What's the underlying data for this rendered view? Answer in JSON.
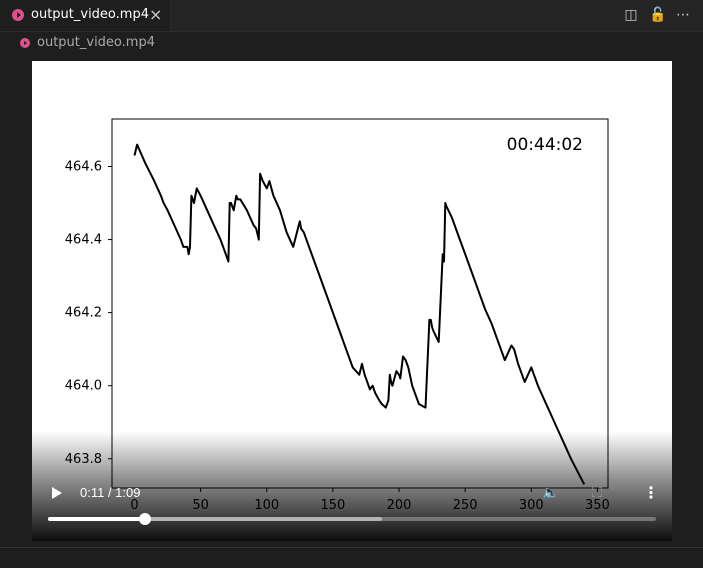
{
  "tab": {
    "label": "output_video.mp4",
    "close": "×"
  },
  "actions": {
    "split": "◫",
    "lock": "🔓",
    "more": "⋯"
  },
  "breadcrumb": {
    "label": "output_video.mp4"
  },
  "player": {
    "time_label": "0:11 / 1:09",
    "progress_fraction": 0.16,
    "buffered_fraction": 0.55,
    "volume_icon": "🔈",
    "fullscreen_icon": "⛶",
    "more_icon": "⋮"
  },
  "chart_data": {
    "type": "line",
    "title": "",
    "xlabel": "",
    "ylabel": "",
    "annotation": "00:44:02",
    "xlim": [
      -17,
      358
    ],
    "ylim": [
      463.72,
      464.73
    ],
    "xticks": [
      0,
      50,
      100,
      150,
      200,
      250,
      300,
      350
    ],
    "yticks": [
      463.8,
      464.0,
      464.2,
      464.4,
      464.6
    ],
    "ytick_labels": [
      "463.8",
      "464.0",
      "464.2",
      "464.4",
      "464.6"
    ],
    "series": [
      {
        "color": "#000000",
        "x": [
          0,
          2,
          8,
          15,
          20,
          22,
          25,
          30,
          35,
          37,
          40,
          41,
          42,
          43,
          45,
          47,
          50,
          55,
          60,
          65,
          70,
          71,
          72,
          73,
          75,
          77,
          78,
          80,
          85,
          90,
          92,
          94,
          95,
          97,
          100,
          102,
          105,
          110,
          115,
          120,
          125,
          126,
          128,
          130,
          135,
          140,
          145,
          150,
          155,
          160,
          165,
          170,
          172,
          174,
          175,
          178,
          180,
          182,
          185,
          187,
          190,
          192,
          193,
          194,
          195,
          198,
          200,
          201,
          203,
          205,
          207,
          210,
          215,
          220,
          223,
          224,
          225,
          226,
          230,
          233,
          234,
          235,
          236,
          240,
          245,
          250,
          255,
          260,
          265,
          270,
          275,
          280,
          285,
          287,
          290,
          295,
          300,
          301,
          303,
          305,
          310,
          315,
          320,
          325,
          330,
          340
        ],
        "y": [
          464.63,
          464.66,
          464.61,
          464.56,
          464.52,
          464.5,
          464.48,
          464.44,
          464.4,
          464.38,
          464.38,
          464.36,
          464.38,
          464.52,
          464.5,
          464.54,
          464.52,
          464.48,
          464.44,
          464.4,
          464.35,
          464.34,
          464.5,
          464.5,
          464.48,
          464.52,
          464.51,
          464.51,
          464.48,
          464.44,
          464.43,
          464.4,
          464.58,
          464.56,
          464.54,
          464.56,
          464.52,
          464.48,
          464.42,
          464.38,
          464.45,
          464.43,
          464.42,
          464.4,
          464.35,
          464.3,
          464.25,
          464.2,
          464.15,
          464.1,
          464.05,
          464.03,
          464.06,
          464.03,
          464.02,
          463.99,
          464.0,
          463.98,
          463.96,
          463.95,
          463.94,
          463.96,
          464.03,
          464.01,
          464.0,
          464.04,
          464.03,
          464.02,
          464.08,
          464.07,
          464.05,
          464.0,
          463.95,
          463.94,
          464.18,
          464.18,
          464.16,
          464.15,
          464.12,
          464.36,
          464.34,
          464.5,
          464.49,
          464.46,
          464.41,
          464.36,
          464.31,
          464.26,
          464.21,
          464.17,
          464.12,
          464.07,
          464.11,
          464.1,
          464.06,
          464.01,
          464.05,
          464.04,
          464.02,
          464.0,
          463.96,
          463.92,
          463.88,
          463.84,
          463.8,
          463.73
        ]
      }
    ]
  }
}
